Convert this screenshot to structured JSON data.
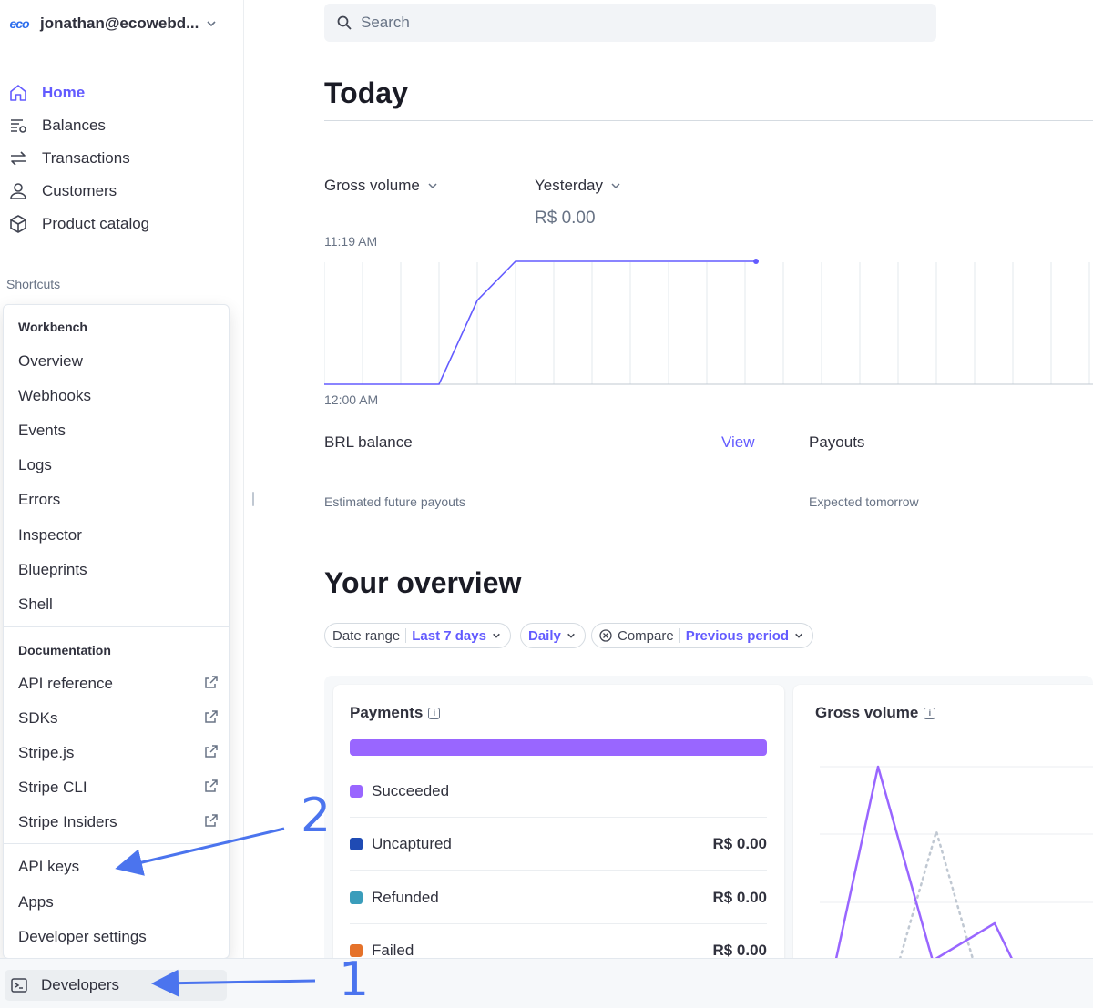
{
  "account": {
    "logo": "eco",
    "name": "jonathan@ecowebd...",
    "icon": "chevron-down-icon"
  },
  "nav": [
    {
      "label": "Home",
      "icon": "home-icon",
      "active": true
    },
    {
      "label": "Balances",
      "icon": "balances-icon"
    },
    {
      "label": "Transactions",
      "icon": "transactions-icon"
    },
    {
      "label": "Customers",
      "icon": "customer-icon"
    },
    {
      "label": "Product catalog",
      "icon": "box-icon"
    }
  ],
  "shortcuts_label": "Shortcuts",
  "developer_menu": {
    "workbench_heading": "Workbench",
    "workbench": [
      "Overview",
      "Webhooks",
      "Events",
      "Logs",
      "Errors",
      "Inspector",
      "Blueprints",
      "Shell"
    ],
    "documentation_heading": "Documentation",
    "documentation": [
      "API reference",
      "SDKs",
      "Stripe.js",
      "Stripe CLI",
      "Stripe Insiders"
    ],
    "other": [
      "API keys",
      "Apps",
      "Developer settings"
    ]
  },
  "bottom": {
    "developers_label": "Developers",
    "icon": "terminal-icon"
  },
  "search": {
    "placeholder": "Search"
  },
  "today": {
    "title": "Today",
    "gross_volume_label": "Gross volume",
    "compare_label": "Yesterday",
    "compare_value": "R$ 0.00",
    "time_top": "11:19 AM",
    "time_bottom": "12:00 AM",
    "brl_balance_label": "BRL balance",
    "view_link": "View",
    "payouts_label": "Payouts",
    "estimated_label": "Estimated future payouts",
    "expected_label": "Expected tomorrow"
  },
  "overview": {
    "title": "Your overview",
    "filters": {
      "date_range_label": "Date range",
      "date_range_value": "Last 7 days",
      "interval_value": "Daily",
      "compare_label": "Compare",
      "compare_value": "Previous period"
    },
    "payments_card": {
      "title": "Payments",
      "rows": [
        {
          "label": "Succeeded",
          "color": "#9966ff",
          "amount": ""
        },
        {
          "label": "Uncaptured",
          "color": "#1f4bb4",
          "amount": "R$ 0.00"
        },
        {
          "label": "Refunded",
          "color": "#3a9dbb",
          "amount": "R$ 0.00"
        },
        {
          "label": "Failed",
          "color": "#e5722a",
          "amount": "R$ 0.00"
        }
      ]
    },
    "gross_volume_card": {
      "title": "Gross volume"
    }
  },
  "annotations": {
    "one": "1",
    "two": "2"
  },
  "colors": {
    "accent": "#635bff",
    "annotation": "#4b74ee",
    "bar": "#9966ff"
  }
}
